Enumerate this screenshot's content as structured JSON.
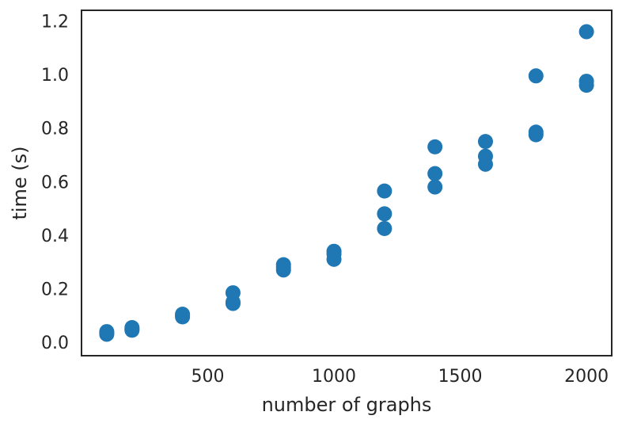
{
  "chart_data": {
    "type": "scatter",
    "title": "",
    "xlabel": "number of graphs",
    "ylabel": "time (s)",
    "xlim": [
      0,
      2100
    ],
    "ylim": [
      -0.05,
      1.24
    ],
    "xticks": [
      500,
      1000,
      1500,
      2000
    ],
    "xtick_labels": [
      "500",
      "1000",
      "1500",
      "2000"
    ],
    "yticks": [
      0.0,
      0.2,
      0.4,
      0.6,
      0.8,
      1.0,
      1.2
    ],
    "ytick_labels": [
      "0.0",
      "0.2",
      "0.4",
      "0.6",
      "0.8",
      "1.0",
      "1.2"
    ],
    "grid": false,
    "legend": false,
    "marker_color": "#1f77b4",
    "axes_color": "#262626",
    "background": "#ffffff",
    "points": [
      {
        "x": 100,
        "y": 0.03
      },
      {
        "x": 100,
        "y": 0.035
      },
      {
        "x": 100,
        "y": 0.04
      },
      {
        "x": 200,
        "y": 0.045
      },
      {
        "x": 200,
        "y": 0.05
      },
      {
        "x": 200,
        "y": 0.055
      },
      {
        "x": 400,
        "y": 0.095
      },
      {
        "x": 400,
        "y": 0.1
      },
      {
        "x": 400,
        "y": 0.105
      },
      {
        "x": 600,
        "y": 0.145
      },
      {
        "x": 600,
        "y": 0.15
      },
      {
        "x": 600,
        "y": 0.185
      },
      {
        "x": 800,
        "y": 0.27
      },
      {
        "x": 800,
        "y": 0.28
      },
      {
        "x": 800,
        "y": 0.29
      },
      {
        "x": 1000,
        "y": 0.31
      },
      {
        "x": 1000,
        "y": 0.33
      },
      {
        "x": 1000,
        "y": 0.34
      },
      {
        "x": 1200,
        "y": 0.425
      },
      {
        "x": 1200,
        "y": 0.48
      },
      {
        "x": 1200,
        "y": 0.565
      },
      {
        "x": 1400,
        "y": 0.58
      },
      {
        "x": 1400,
        "y": 0.63
      },
      {
        "x": 1400,
        "y": 0.73
      },
      {
        "x": 1600,
        "y": 0.665
      },
      {
        "x": 1600,
        "y": 0.695
      },
      {
        "x": 1600,
        "y": 0.75
      },
      {
        "x": 1800,
        "y": 0.775
      },
      {
        "x": 1800,
        "y": 0.785
      },
      {
        "x": 1800,
        "y": 0.995
      },
      {
        "x": 2000,
        "y": 0.96
      },
      {
        "x": 2000,
        "y": 0.975
      },
      {
        "x": 2000,
        "y": 1.16
      }
    ]
  }
}
